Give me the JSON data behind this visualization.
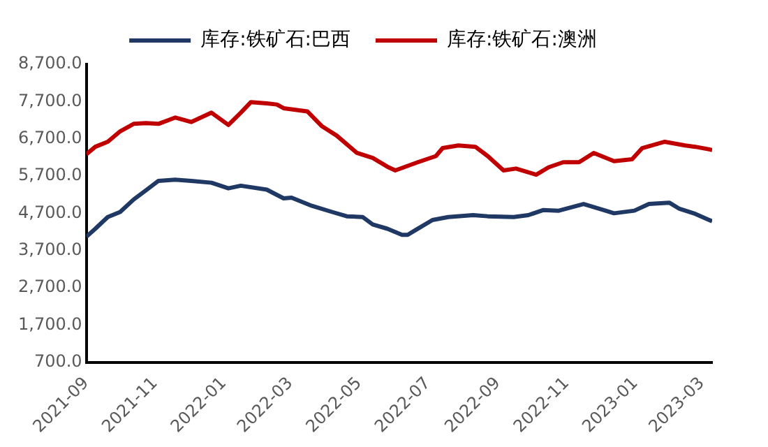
{
  "chart_data": {
    "type": "line",
    "legend": "top",
    "grid": false,
    "marker": "none",
    "line_style": "solid",
    "xlim": [
      "2021-09-01",
      "2023-03-10"
    ],
    "xticks": [
      "2021-09",
      "2021-11",
      "2022-01",
      "2022-03",
      "2022-05",
      "2022-07",
      "2022-09",
      "2022-11",
      "2023-01",
      "2023-03"
    ],
    "ylim": [
      700,
      8700
    ],
    "yticks": [
      {
        "value": 700,
        "label": "700.0"
      },
      {
        "value": 1700,
        "label": "1,700.0"
      },
      {
        "value": 2700,
        "label": "2,700.0"
      },
      {
        "value": 3700,
        "label": "3,700.0"
      },
      {
        "value": 4700,
        "label": "4,700.0"
      },
      {
        "value": 5700,
        "label": "5,700.0"
      },
      {
        "value": 6700,
        "label": "6,700.0"
      },
      {
        "value": 7700,
        "label": "7,700.0"
      },
      {
        "value": 8700,
        "label": "8,700.0"
      }
    ],
    "series": [
      {
        "name": "库存:铁矿石:巴西",
        "color": "#1f3864",
        "x": [
          "2021-09-01",
          "2021-09-09",
          "2021-09-20",
          "2021-10-01",
          "2021-10-13",
          "2021-10-24",
          "2021-11-04",
          "2021-11-19",
          "2021-12-03",
          "2021-12-21",
          "2022-01-05",
          "2022-01-16",
          "2022-02-08",
          "2022-02-23",
          "2022-03-02",
          "2022-03-20",
          "2022-04-07",
          "2022-04-20",
          "2022-05-04",
          "2022-05-13",
          "2022-05-26",
          "2022-06-08",
          "2022-06-13",
          "2022-06-20",
          "2022-07-05",
          "2022-07-19",
          "2022-08-10",
          "2022-08-23",
          "2022-09-15",
          "2022-09-28",
          "2022-10-11",
          "2022-10-25",
          "2022-11-16",
          "2022-12-04",
          "2022-12-13",
          "2022-12-31",
          "2023-01-13",
          "2023-01-31",
          "2023-02-09",
          "2023-02-23",
          "2023-03-10"
        ],
        "values": [
          4070,
          4285,
          4600,
          4735,
          5070,
          5320,
          5570,
          5600,
          5570,
          5520,
          5370,
          5440,
          5335,
          5100,
          5120,
          4900,
          4735,
          4620,
          4600,
          4400,
          4285,
          4120,
          4120,
          4250,
          4520,
          4600,
          4650,
          4620,
          4600,
          4650,
          4785,
          4770,
          4950,
          4785,
          4700,
          4770,
          4950,
          4985,
          4820,
          4685,
          4485
        ]
      },
      {
        "name": "库存:铁矿石:澳洲",
        "color": "#c00000",
        "x": [
          "2021-09-01",
          "2021-09-09",
          "2021-09-20",
          "2021-10-01",
          "2021-10-13",
          "2021-10-24",
          "2021-11-04",
          "2021-11-19",
          "2021-12-03",
          "2021-12-21",
          "2022-01-05",
          "2022-01-16",
          "2022-01-25",
          "2022-02-08",
          "2022-02-17",
          "2022-02-23",
          "2022-03-16",
          "2022-03-29",
          "2022-04-11",
          "2022-04-29",
          "2022-05-13",
          "2022-05-26",
          "2022-06-02",
          "2022-06-22",
          "2022-07-08",
          "2022-07-14",
          "2022-07-28",
          "2022-08-12",
          "2022-08-23",
          "2022-09-06",
          "2022-09-17",
          "2022-10-05",
          "2022-10-16",
          "2022-10-29",
          "2022-11-12",
          "2022-11-25",
          "2022-12-13",
          "2022-12-29",
          "2023-01-07",
          "2023-01-27",
          "2023-02-14",
          "2023-02-23",
          "2023-03-10"
        ],
        "values": [
          6285,
          6485,
          6620,
          6900,
          7100,
          7120,
          7100,
          7270,
          7150,
          7400,
          7070,
          7400,
          7685,
          7650,
          7620,
          7520,
          7435,
          7035,
          6785,
          6320,
          6185,
          5950,
          5850,
          6070,
          6235,
          6450,
          6520,
          6485,
          6235,
          5850,
          5900,
          5735,
          5935,
          6070,
          6070,
          6320,
          6100,
          6150,
          6450,
          6620,
          6520,
          6485,
          6400
        ]
      }
    ]
  }
}
